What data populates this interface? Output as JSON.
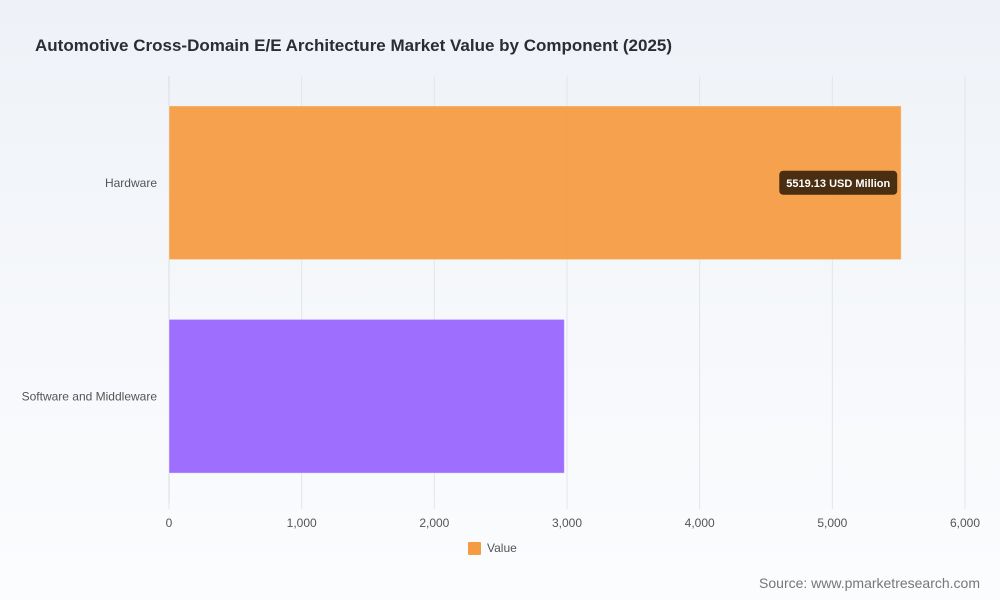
{
  "title": "Automotive Cross-Domain E/E Architecture Market Value by Component (2025)",
  "source": "Source: www.pmarketresearch.com",
  "legend": {
    "label": "Value",
    "color": "#f59c43"
  },
  "chart_data": {
    "type": "bar",
    "orientation": "horizontal",
    "title": "Automotive Cross-Domain E/E Architecture Market Value by Component (2025)",
    "categories": [
      "Hardware",
      "Software and Middleware"
    ],
    "series": [
      {
        "name": "Value",
        "values": [
          5519.13,
          2980
        ]
      }
    ],
    "colors": [
      "#f59c43",
      "#9966ff"
    ],
    "xlim": [
      0,
      6000
    ],
    "xticks": [
      0,
      1000,
      2000,
      3000,
      4000,
      5000,
      6000
    ],
    "xtick_labels": [
      "0",
      "1,000",
      "2,000",
      "3,000",
      "4,000",
      "5,000",
      "6,000"
    ],
    "grid": true,
    "legend_position": "bottom",
    "annotations": [
      {
        "category": "Hardware",
        "text": "5519.13 USD Million"
      }
    ]
  }
}
